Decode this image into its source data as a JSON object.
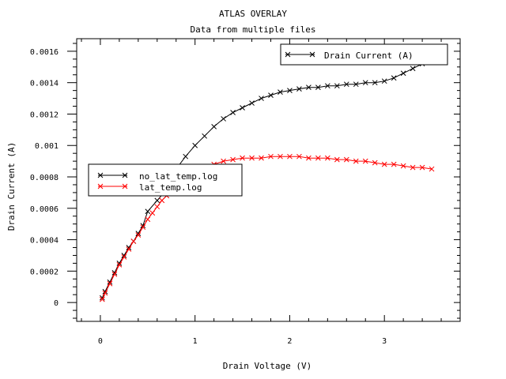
{
  "chart_data": {
    "type": "line",
    "title": "ATLAS OVERLAY",
    "subtitle": "Data from multiple files",
    "xlabel": "Drain Voltage (V)",
    "ylabel": "Drain Current (A)",
    "xlim": [
      -0.25,
      3.8
    ],
    "ylim": [
      -0.00012,
      0.00168
    ],
    "x_ticks": [
      "0",
      "1",
      "2",
      "3"
    ],
    "y_ticks": [
      "0",
      "0.0002",
      "0.0004",
      "0.0006",
      "0.0008",
      "0.001",
      "0.0012",
      "0.0014",
      "0.0016"
    ],
    "grid": false,
    "series_legend_title": "Drain Current (A)",
    "series": [
      {
        "name": "no_lat_temp.log",
        "color": "#000000",
        "marker": "x",
        "x": [
          0.02,
          0.05,
          0.1,
          0.15,
          0.2,
          0.25,
          0.3,
          0.35,
          0.4,
          0.45,
          0.5,
          0.6,
          0.7,
          0.8,
          0.9,
          1.0,
          1.1,
          1.2,
          1.3,
          1.4,
          1.5,
          1.6,
          1.7,
          1.8,
          1.9,
          2.0,
          2.1,
          2.2,
          2.3,
          2.4,
          2.5,
          2.6,
          2.7,
          2.8,
          2.9,
          3.0,
          3.1,
          3.2,
          3.3,
          3.4,
          3.5
        ],
        "values": [
          3e-05,
          7e-05,
          0.00013,
          0.00019,
          0.00025,
          0.0003,
          0.00035,
          0.00039,
          0.00044,
          0.00049,
          0.00058,
          0.00065,
          0.00072,
          0.00085,
          0.00093,
          0.001,
          0.00106,
          0.00112,
          0.00117,
          0.00121,
          0.00124,
          0.00127,
          0.0013,
          0.00132,
          0.00134,
          0.00135,
          0.00136,
          0.00137,
          0.00137,
          0.00138,
          0.00138,
          0.00139,
          0.00139,
          0.0014,
          0.0014,
          0.00141,
          0.00143,
          0.00146,
          0.00149,
          0.00152,
          0.00155
        ]
      },
      {
        "name": "lat_temp.log",
        "color": "#ff0000",
        "marker": "x",
        "x": [
          0.02,
          0.05,
          0.1,
          0.15,
          0.2,
          0.25,
          0.3,
          0.35,
          0.4,
          0.45,
          0.5,
          0.55,
          0.6,
          0.65,
          0.7,
          0.8,
          0.9,
          1.0,
          1.1,
          1.2,
          1.3,
          1.4,
          1.5,
          1.6,
          1.7,
          1.8,
          1.9,
          2.0,
          2.1,
          2.2,
          2.3,
          2.4,
          2.5,
          2.6,
          2.7,
          2.8,
          2.9,
          3.0,
          3.1,
          3.2,
          3.3,
          3.4,
          3.5
        ],
        "values": [
          2e-05,
          6e-05,
          0.00012,
          0.00018,
          0.00024,
          0.00029,
          0.00034,
          0.00039,
          0.00043,
          0.00048,
          0.00053,
          0.00057,
          0.00061,
          0.00065,
          0.00068,
          0.00074,
          0.00079,
          0.00083,
          0.00086,
          0.00088,
          0.0009,
          0.00091,
          0.00092,
          0.00092,
          0.00092,
          0.00093,
          0.00093,
          0.00093,
          0.00093,
          0.00092,
          0.00092,
          0.00092,
          0.00091,
          0.00091,
          0.0009,
          0.0009,
          0.00089,
          0.00088,
          0.00088,
          0.00087,
          0.00086,
          0.00086,
          0.00085
        ]
      }
    ]
  }
}
